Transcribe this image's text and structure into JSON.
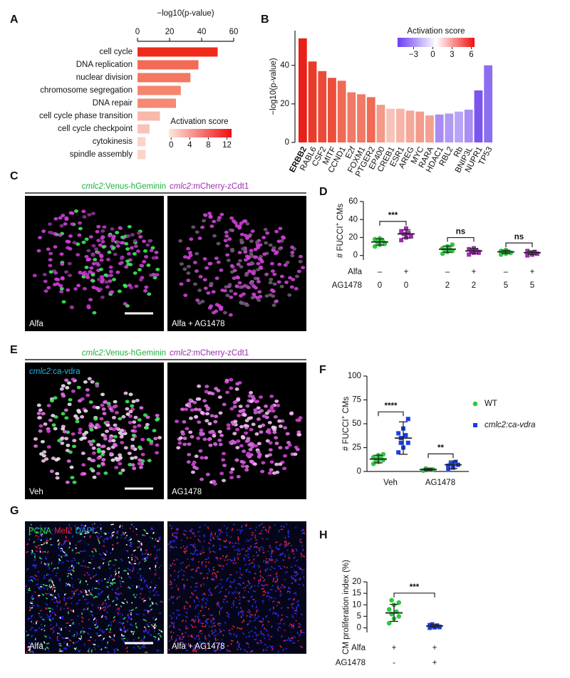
{
  "chart_data": [
    {
      "type": "barh",
      "label": "A",
      "xlabel": "−log10(p-value)",
      "categories": [
        "cell cycle",
        "DNA replication",
        "nuclear division",
        "chromosome segregation",
        "DNA repair",
        "cell cycle phase transition",
        "cell cycle checkpoint",
        "cytokinesis",
        "spindle assembly"
      ],
      "values": [
        50,
        38,
        33,
        27,
        24,
        14,
        7.5,
        5,
        5
      ],
      "colors": [
        "#ef2a1c",
        "#f36a55",
        "#f37761",
        "#f4866f",
        "#f48a74",
        "#f8b8aa",
        "#f9c4b8",
        "#fbd3ca",
        "#fbd3ca"
      ],
      "xlim": [
        0,
        60
      ],
      "xticks": [
        0,
        20,
        40,
        60
      ],
      "colorbar": {
        "title": "Activation score",
        "lim": [
          -0.5,
          13
        ],
        "ticks": [
          0,
          4,
          8,
          12
        ],
        "colors": [
          "#fde6de",
          "#ee1010"
        ]
      }
    },
    {
      "type": "bar",
      "label": "B",
      "ylabel": "−log10(p-value)",
      "categories": [
        "ERBB2",
        "RABL6",
        "CSF2",
        "MITF",
        "CCND1",
        "E2f",
        "FOXM1",
        "PTGER2",
        "EP400",
        "CREB1",
        "ESR1",
        "AREG",
        "MYC",
        "RARA",
        "HDAC1",
        "RBL2",
        "Rb",
        "BNIP3L",
        "NUPR1",
        "TP53"
      ],
      "values": [
        54,
        42,
        37,
        33.5,
        32,
        26,
        25,
        23.5,
        19.5,
        17.5,
        17.5,
        16.5,
        16,
        14,
        14.5,
        15,
        16,
        17,
        27,
        40
      ],
      "colors": [
        "#e8201a",
        "#ea3a2a",
        "#ec4a36",
        "#ec4e3a",
        "#ee6a55",
        "#f07a65",
        "#f07a65",
        "#f06a55",
        "#f39a88",
        "#f7c3b8",
        "#f5b5a8",
        "#f4a898",
        "#f39c8c",
        "#f2a090",
        "#a88cf3",
        "#b09af5",
        "#b6a4f5",
        "#a98ef3",
        "#7a56ef",
        "#8c6ef0"
      ],
      "ylim": [
        0,
        58
      ],
      "yticks": [
        0,
        20,
        40
      ],
      "colorbar": {
        "title": "Activation score",
        "lim": [
          -5.5,
          6.5
        ],
        "ticks": [
          {
            "value": -3,
            "label": "−3"
          },
          0,
          3,
          6
        ],
        "colors": [
          "#6a3cf0",
          "#ffffff",
          "#f01010"
        ]
      }
    },
    {
      "type": "dot",
      "label": "D",
      "ylabel": [
        "# FUCCI",
        "+",
        " CMs"
      ],
      "ylim": [
        -5,
        60
      ],
      "yticks": [
        0,
        20,
        40,
        60
      ],
      "groups": [
        {
          "color": "#2ec840",
          "marker": "circle",
          "points": [
            10,
            12,
            14,
            15,
            17,
            18,
            19,
            13
          ],
          "mean": 15,
          "sd": 3.5
        },
        {
          "color": "#9b2fae",
          "marker": "square",
          "points": [
            17,
            20,
            22,
            24,
            25,
            27,
            30,
            21
          ],
          "mean": 24,
          "sd": 4.5
        },
        {
          "color": "#2ec840",
          "marker": "circle",
          "points": [
            2,
            4,
            5,
            6,
            7,
            8,
            10,
            12
          ],
          "mean": 7,
          "sd": 3.5
        },
        {
          "color": "#9b2fae",
          "marker": "square",
          "points": [
            1,
            3,
            4,
            5,
            6,
            7,
            8,
            3
          ],
          "mean": 5,
          "sd": 2.5
        },
        {
          "color": "#2ec840",
          "marker": "circle",
          "points": [
            1,
            2,
            3,
            4,
            4,
            5,
            6,
            3
          ],
          "mean": 4,
          "sd": 1.8
        },
        {
          "color": "#9b2fae",
          "marker": "square",
          "points": [
            0,
            1,
            2,
            3,
            4,
            5,
            1,
            2
          ],
          "mean": 3,
          "sd": 2
        }
      ],
      "rows": [
        {
          "name": "Alfa",
          "values": [
            "–",
            "+",
            "–",
            "+",
            "–",
            "+"
          ]
        },
        {
          "name": "AG1478",
          "values": [
            0,
            0,
            2,
            2,
            5,
            5
          ]
        }
      ],
      "significance": [
        "***",
        "ns",
        "ns"
      ]
    },
    {
      "type": "grouped_dot",
      "label": "F",
      "ylabel": [
        "# FUCCI",
        "+",
        " CMs"
      ],
      "ylim": [
        0,
        100
      ],
      "yticks": [
        0,
        25,
        50,
        75,
        100
      ],
      "categories": [
        "Veh",
        "AG1478"
      ],
      "legend": "right",
      "series": [
        {
          "name": "WT",
          "color": "#2ec840",
          "marker": "circle",
          "groups": [
            {
              "points": [
                8,
                10,
                12,
                13,
                14,
                15,
                17,
                18,
                11
              ],
              "mean": 13,
              "sd": 4
            },
            {
              "points": [
                1,
                2,
                2,
                3,
                2,
                1
              ],
              "mean": 2,
              "sd": 1
            }
          ]
        },
        {
          "name": "cmlc2:ca-vdra",
          "color": "#1a3ee0",
          "marker": "square",
          "groups": [
            {
              "points": [
                20,
                25,
                30,
                35,
                38,
                40,
                45,
                55,
                30
              ],
              "mean": 35,
              "sd": 17
            },
            {
              "points": [
                3,
                5,
                7,
                8,
                10,
                6,
                4
              ],
              "mean": 7,
              "sd": 4
            }
          ]
        }
      ],
      "significance": [
        "****",
        "**"
      ]
    },
    {
      "type": "dot",
      "label": "H",
      "ylabel": [
        "CM proliferation index (%)"
      ],
      "ylim": [
        -2,
        20
      ],
      "yticks": [
        0,
        5,
        10,
        15,
        20
      ],
      "groups": [
        {
          "color": "#2ec840",
          "marker": "circle",
          "points": [
            2,
            4,
            5,
            6,
            7,
            8,
            10,
            11,
            12
          ],
          "mean": 6.5,
          "sd": 3.7
        },
        {
          "color": "#1a3ee0",
          "marker": "square",
          "points": [
            0,
            0.2,
            0.5,
            0.8,
            1,
            1.2,
            0.5,
            0.3,
            1.5
          ],
          "mean": 0.8,
          "sd": 0.6
        }
      ],
      "rows": [
        {
          "name": "Alfa",
          "values": [
            "+",
            "+"
          ]
        },
        {
          "name": "AG1478",
          "values": [
            "-",
            "+"
          ]
        }
      ],
      "significance": [
        "***"
      ]
    }
  ],
  "image_panels": [
    {
      "label": "C",
      "title": [
        "cmlc2",
        ":Venus-hGeminin",
        "cmlc2",
        ":mCherry-zCdt1"
      ],
      "images": [
        "Alfa",
        "Alfa + AG1478"
      ]
    },
    {
      "label": "E",
      "title": [
        "cmlc2",
        ":Venus-hGeminin",
        "cmlc2",
        ":mCherry-zCdt1"
      ],
      "inset": [
        "cmlc2",
        ":ca-vdra"
      ],
      "images": [
        "Veh",
        "AG1478"
      ]
    },
    {
      "label": "G",
      "stain": [
        "PCNA",
        "Mef2",
        "DAPI"
      ],
      "images": [
        "Alfa",
        "Alfa + AG1478"
      ]
    }
  ]
}
